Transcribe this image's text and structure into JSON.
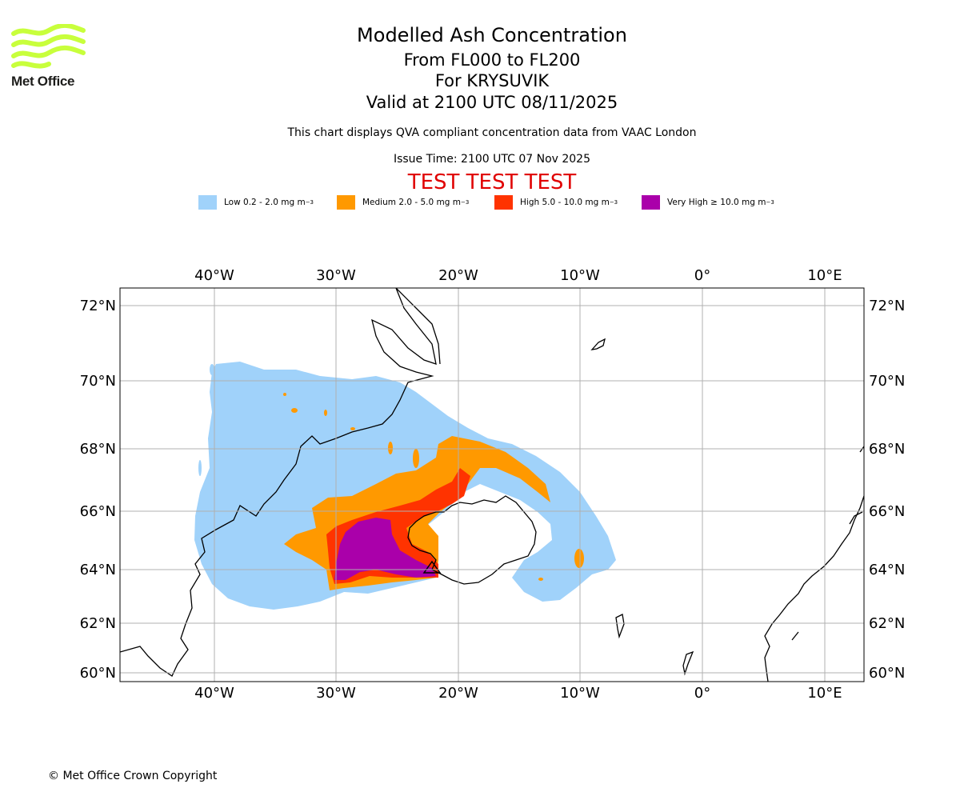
{
  "header": {
    "title": "Modelled Ash Concentration",
    "levels": "From FL000 to FL200",
    "volcano": "For KRYSUVIK",
    "valid": "Valid at 2100 UTC 08/11/2025",
    "note": "This chart displays QVA compliant concentration data from VAAC London",
    "issue_time": "Issue Time: 2100 UTC 07 Nov 2025",
    "test_banner": "TEST TEST TEST"
  },
  "logo": {
    "text": "Met Office",
    "color": "#c8ff3c"
  },
  "legend": [
    {
      "label": "Low 0.2 - 2.0 mg m",
      "sup": "−3",
      "color": "#a0d2fa"
    },
    {
      "label": "Medium 2.0 - 5.0 mg m",
      "sup": "−3",
      "color": "#ff9900"
    },
    {
      "label": "High 5.0 - 10.0 mg m",
      "sup": "−3",
      "color": "#ff3300"
    },
    {
      "label": "Very High  ≥  10.0 mg m",
      "sup": "−3",
      "color": "#aa00aa"
    }
  ],
  "map": {
    "lon_labels": [
      "40°W",
      "30°W",
      "20°W",
      "10°W",
      "0°",
      "10°E"
    ],
    "lat_labels": [
      "72°N",
      "70°N",
      "68°N",
      "66°N",
      "64°N",
      "62°N",
      "60°N"
    ]
  },
  "footer": {
    "copyright": "© Met Office Crown Copyright"
  }
}
